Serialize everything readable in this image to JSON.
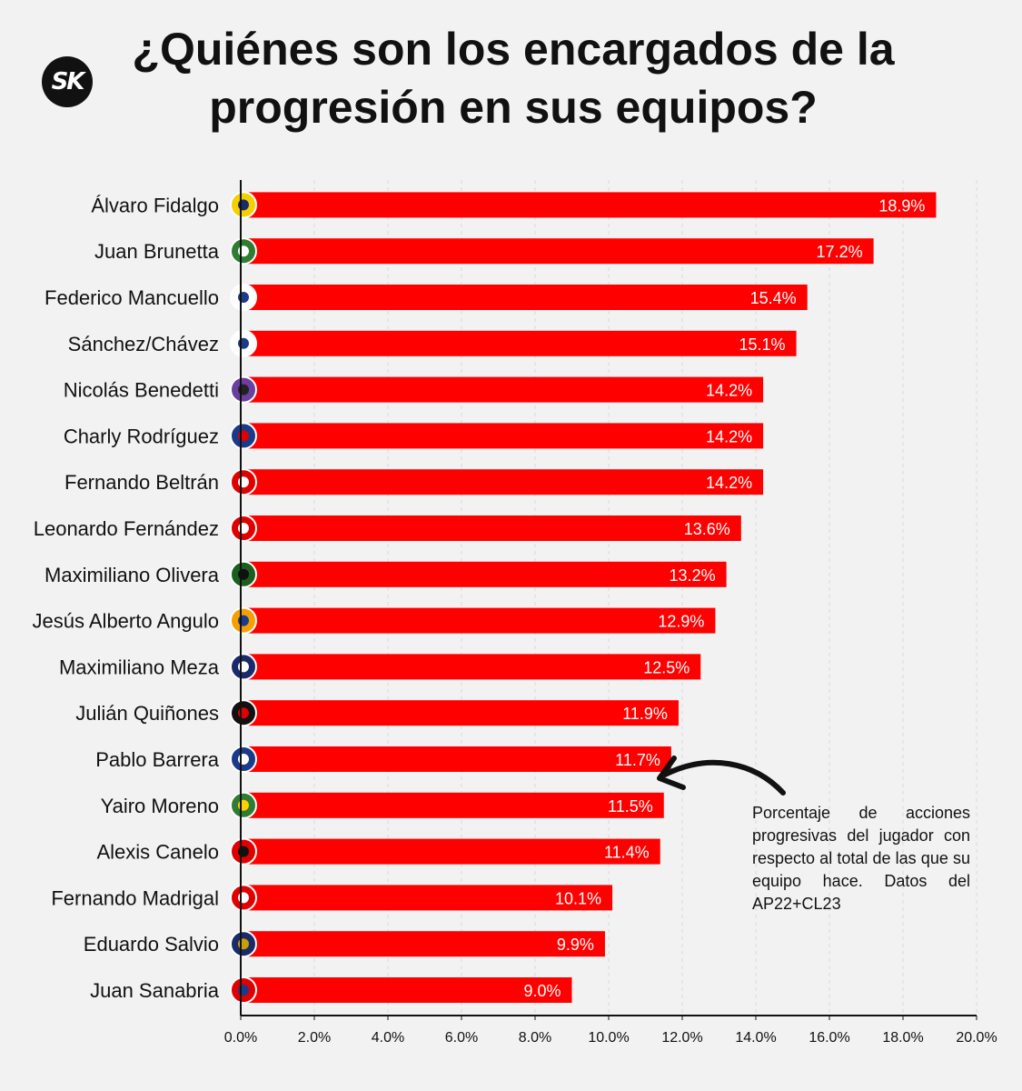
{
  "title": "¿Quiénes son los encargados de la progresión en sus equipos?",
  "logo_text": "SK",
  "note": "Porcentaje de acciones progresivas del jugador con respecto al total de las que su equipo hace. Datos del AP22+CL23",
  "colors": {
    "bar": "#ff0000",
    "background": "#f2f2f2",
    "text": "#111111"
  },
  "chart_data": {
    "type": "bar",
    "orientation": "horizontal",
    "categories": [
      "Álvaro Fidalgo",
      "Juan Brunetta",
      "Federico Mancuello",
      "Sánchez/Chávez",
      "Nicolás Benedetti",
      "Charly Rodríguez",
      "Fernando Beltrán",
      "Leonardo Fernández",
      "Maximiliano Olivera",
      "Jesús Alberto Angulo",
      "Maximiliano Meza",
      "Julián Quiñones",
      "Pablo Barrera",
      "Yairo Moreno",
      "Alexis Canelo",
      "Fernando Madrigal",
      "Eduardo Salvio",
      "Juan Sanabria"
    ],
    "values": [
      18.9,
      17.2,
      15.4,
      15.1,
      14.2,
      14.2,
      14.2,
      13.6,
      13.2,
      12.9,
      12.5,
      11.9,
      11.7,
      11.5,
      11.4,
      10.1,
      9.9,
      9.0
    ],
    "labels": [
      "18.9%",
      "17.2%",
      "15.4%",
      "15.1%",
      "14.2%",
      "14.2%",
      "14.2%",
      "13.6%",
      "13.2%",
      "12.9%",
      "12.5%",
      "11.9%",
      "11.7%",
      "11.5%",
      "11.4%",
      "10.1%",
      "9.9%",
      "9.0%"
    ],
    "xticks": [
      "0.0%",
      "2.0%",
      "4.0%",
      "6.0%",
      "8.0%",
      "10.0%",
      "12.0%",
      "14.0%",
      "16.0%",
      "18.0%",
      "20.0%"
    ],
    "xlim": [
      0,
      20
    ],
    "grid": true,
    "team_badge_colors": [
      [
        "#f5d000",
        "#1a2b6b"
      ],
      [
        "#2e7d32",
        "#ffffff"
      ],
      [
        "#ffffff",
        "#1a3a8a"
      ],
      [
        "#ffffff",
        "#1a3a8a"
      ],
      [
        "#6a3fa0",
        "#222222"
      ],
      [
        "#1a3a8a",
        "#e00000"
      ],
      [
        "#e00000",
        "#ffffff"
      ],
      [
        "#e00000",
        "#ffffff"
      ],
      [
        "#1b5e20",
        "#111111"
      ],
      [
        "#f5a000",
        "#1a3a8a"
      ],
      [
        "#1a2b6b",
        "#ffffff"
      ],
      [
        "#111111",
        "#e00000"
      ],
      [
        "#1a3a8a",
        "#ffffff"
      ],
      [
        "#2e7d32",
        "#ffd000"
      ],
      [
        "#e00000",
        "#111111"
      ],
      [
        "#e00000",
        "#ffffff"
      ],
      [
        "#1a2b6b",
        "#c8a000"
      ],
      [
        "#e00000",
        "#1a3a8a"
      ]
    ]
  }
}
